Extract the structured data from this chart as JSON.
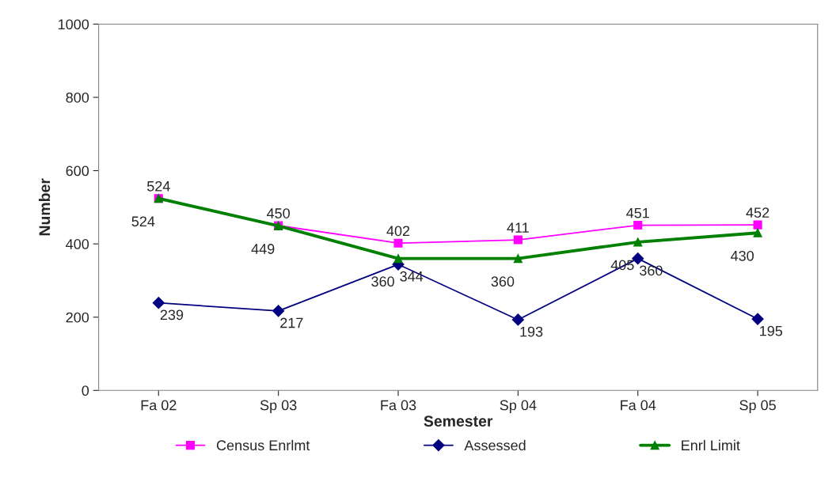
{
  "chart_data": {
    "type": "line",
    "xlabel": "Semester",
    "ylabel": "Number",
    "categories": [
      "Fa 02",
      "Sp 03",
      "Fa 03",
      "Sp 04",
      "Fa 04",
      "Sp 05"
    ],
    "series": [
      {
        "name": "Census Enrlmt",
        "color": "#ff00ff",
        "marker": "square",
        "values": [
          524,
          450,
          402,
          411,
          451,
          452
        ]
      },
      {
        "name": "Assessed",
        "color": "#000080",
        "marker": "diamond",
        "values": [
          239,
          217,
          344,
          193,
          360,
          195
        ]
      },
      {
        "name": "Enrl Limit",
        "color": "#008000",
        "marker": "triangle",
        "values": [
          524,
          449,
          360,
          360,
          405,
          430
        ]
      }
    ],
    "ylim": [
      0,
      1000
    ],
    "yticks": [
      0,
      200,
      400,
      600,
      800,
      1000
    ],
    "grid": false,
    "legend": "bottom",
    "data_labels": true
  }
}
